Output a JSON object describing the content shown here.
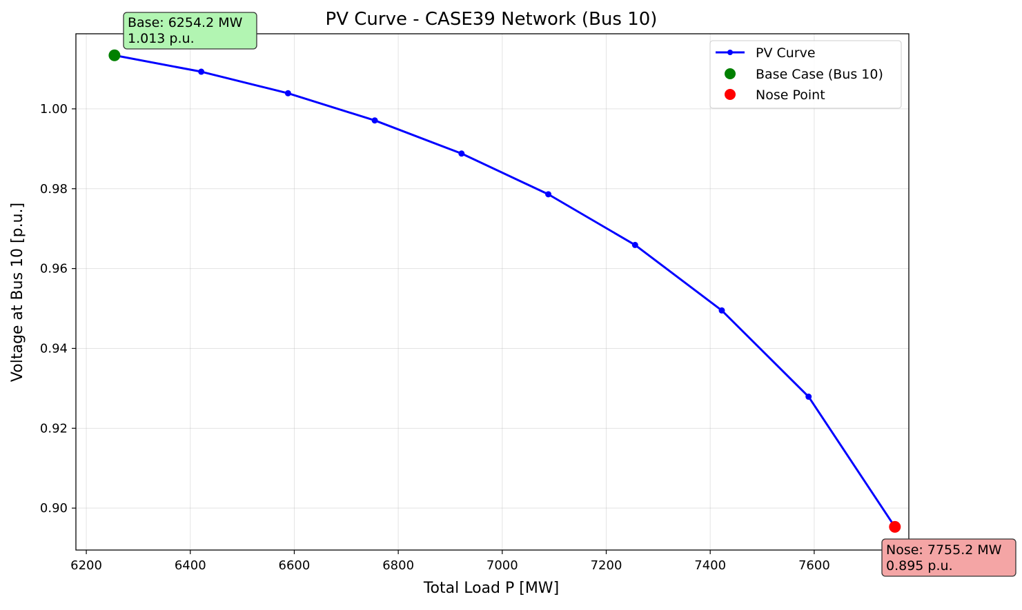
{
  "chart_data": {
    "type": "line",
    "title": "PV Curve - CASE39 Network (Bus 10)",
    "xlabel": "Total Load P [MW]",
    "ylabel": "Voltage at Bus 10 [p.u.]",
    "xlim": [
      6180,
      7782
    ],
    "ylim": [
      0.8895,
      1.0188
    ],
    "xticks": [
      6200,
      6400,
      6600,
      6800,
      7000,
      7200,
      7400,
      7600
    ],
    "yticks": [
      0.9,
      0.92,
      0.94,
      0.96,
      0.98,
      1.0
    ],
    "xtick_labels": [
      "6200",
      "6400",
      "6600",
      "6800",
      "7000",
      "7200",
      "7400",
      "7600"
    ],
    "ytick_labels": [
      "0.90",
      "0.92",
      "0.94",
      "0.96",
      "0.98",
      "1.00"
    ],
    "grid": true,
    "legend_position": "top-right",
    "series": [
      {
        "name": "PV Curve",
        "color": "#0000ff",
        "marker": "circle",
        "x": [
          6254.2,
          6421.1,
          6588.0,
          6754.8,
          6921.7,
          7088.6,
          7255.5,
          7422.3,
          7589.2,
          7755.2
        ],
        "y": [
          1.0134,
          1.0093,
          1.0039,
          0.9971,
          0.9888,
          0.9786,
          0.9659,
          0.9495,
          0.9279,
          0.8953
        ]
      },
      {
        "name": "Base Case (Bus 10)",
        "color": "#008000",
        "marker": "circle",
        "x": [
          6254.2
        ],
        "y": [
          1.0134
        ]
      },
      {
        "name": "Nose Point",
        "color": "#ff0000",
        "marker": "circle",
        "x": [
          7755.2
        ],
        "y": [
          0.8953
        ]
      }
    ],
    "annotations": [
      {
        "line1": "Base: 6254.2 MW",
        "line2": "1.013 p.u.",
        "box_color": "#b2f5b2"
      },
      {
        "line1": "Nose: 7755.2 MW",
        "line2": "0.895 p.u.",
        "box_color": "#f4a5a5"
      }
    ]
  }
}
